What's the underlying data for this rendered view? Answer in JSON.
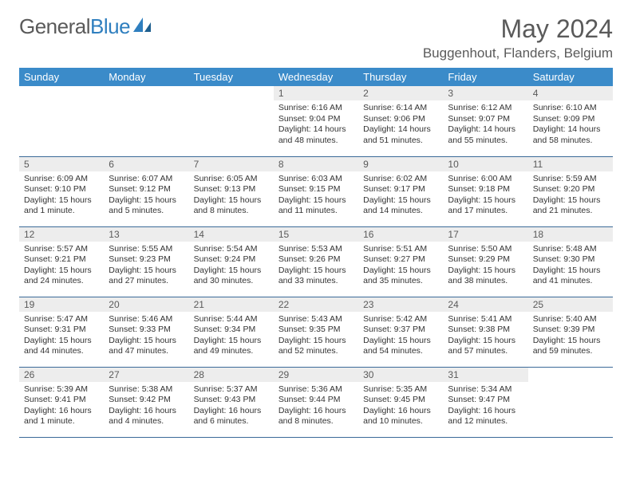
{
  "brand": {
    "part1": "General",
    "part2": "Blue"
  },
  "title": "May 2024",
  "location": "Buggenhout, Flanders, Belgium",
  "colors": {
    "header_bg": "#3b8bc9",
    "header_text": "#ffffff",
    "daynum_bg": "#ededed",
    "text": "#5a5a5a",
    "border": "#3b6a98"
  },
  "weekdays": [
    "Sunday",
    "Monday",
    "Tuesday",
    "Wednesday",
    "Thursday",
    "Friday",
    "Saturday"
  ],
  "weeks": [
    [
      null,
      null,
      null,
      {
        "n": "1",
        "sr": "6:16 AM",
        "ss": "9:04 PM",
        "dl": "14 hours and 48 minutes."
      },
      {
        "n": "2",
        "sr": "6:14 AM",
        "ss": "9:06 PM",
        "dl": "14 hours and 51 minutes."
      },
      {
        "n": "3",
        "sr": "6:12 AM",
        "ss": "9:07 PM",
        "dl": "14 hours and 55 minutes."
      },
      {
        "n": "4",
        "sr": "6:10 AM",
        "ss": "9:09 PM",
        "dl": "14 hours and 58 minutes."
      }
    ],
    [
      {
        "n": "5",
        "sr": "6:09 AM",
        "ss": "9:10 PM",
        "dl": "15 hours and 1 minute."
      },
      {
        "n": "6",
        "sr": "6:07 AM",
        "ss": "9:12 PM",
        "dl": "15 hours and 5 minutes."
      },
      {
        "n": "7",
        "sr": "6:05 AM",
        "ss": "9:13 PM",
        "dl": "15 hours and 8 minutes."
      },
      {
        "n": "8",
        "sr": "6:03 AM",
        "ss": "9:15 PM",
        "dl": "15 hours and 11 minutes."
      },
      {
        "n": "9",
        "sr": "6:02 AM",
        "ss": "9:17 PM",
        "dl": "15 hours and 14 minutes."
      },
      {
        "n": "10",
        "sr": "6:00 AM",
        "ss": "9:18 PM",
        "dl": "15 hours and 17 minutes."
      },
      {
        "n": "11",
        "sr": "5:59 AM",
        "ss": "9:20 PM",
        "dl": "15 hours and 21 minutes."
      }
    ],
    [
      {
        "n": "12",
        "sr": "5:57 AM",
        "ss": "9:21 PM",
        "dl": "15 hours and 24 minutes."
      },
      {
        "n": "13",
        "sr": "5:55 AM",
        "ss": "9:23 PM",
        "dl": "15 hours and 27 minutes."
      },
      {
        "n": "14",
        "sr": "5:54 AM",
        "ss": "9:24 PM",
        "dl": "15 hours and 30 minutes."
      },
      {
        "n": "15",
        "sr": "5:53 AM",
        "ss": "9:26 PM",
        "dl": "15 hours and 33 minutes."
      },
      {
        "n": "16",
        "sr": "5:51 AM",
        "ss": "9:27 PM",
        "dl": "15 hours and 35 minutes."
      },
      {
        "n": "17",
        "sr": "5:50 AM",
        "ss": "9:29 PM",
        "dl": "15 hours and 38 minutes."
      },
      {
        "n": "18",
        "sr": "5:48 AM",
        "ss": "9:30 PM",
        "dl": "15 hours and 41 minutes."
      }
    ],
    [
      {
        "n": "19",
        "sr": "5:47 AM",
        "ss": "9:31 PM",
        "dl": "15 hours and 44 minutes."
      },
      {
        "n": "20",
        "sr": "5:46 AM",
        "ss": "9:33 PM",
        "dl": "15 hours and 47 minutes."
      },
      {
        "n": "21",
        "sr": "5:44 AM",
        "ss": "9:34 PM",
        "dl": "15 hours and 49 minutes."
      },
      {
        "n": "22",
        "sr": "5:43 AM",
        "ss": "9:35 PM",
        "dl": "15 hours and 52 minutes."
      },
      {
        "n": "23",
        "sr": "5:42 AM",
        "ss": "9:37 PM",
        "dl": "15 hours and 54 minutes."
      },
      {
        "n": "24",
        "sr": "5:41 AM",
        "ss": "9:38 PM",
        "dl": "15 hours and 57 minutes."
      },
      {
        "n": "25",
        "sr": "5:40 AM",
        "ss": "9:39 PM",
        "dl": "15 hours and 59 minutes."
      }
    ],
    [
      {
        "n": "26",
        "sr": "5:39 AM",
        "ss": "9:41 PM",
        "dl": "16 hours and 1 minute."
      },
      {
        "n": "27",
        "sr": "5:38 AM",
        "ss": "9:42 PM",
        "dl": "16 hours and 4 minutes."
      },
      {
        "n": "28",
        "sr": "5:37 AM",
        "ss": "9:43 PM",
        "dl": "16 hours and 6 minutes."
      },
      {
        "n": "29",
        "sr": "5:36 AM",
        "ss": "9:44 PM",
        "dl": "16 hours and 8 minutes."
      },
      {
        "n": "30",
        "sr": "5:35 AM",
        "ss": "9:45 PM",
        "dl": "16 hours and 10 minutes."
      },
      {
        "n": "31",
        "sr": "5:34 AM",
        "ss": "9:47 PM",
        "dl": "16 hours and 12 minutes."
      },
      null
    ]
  ]
}
